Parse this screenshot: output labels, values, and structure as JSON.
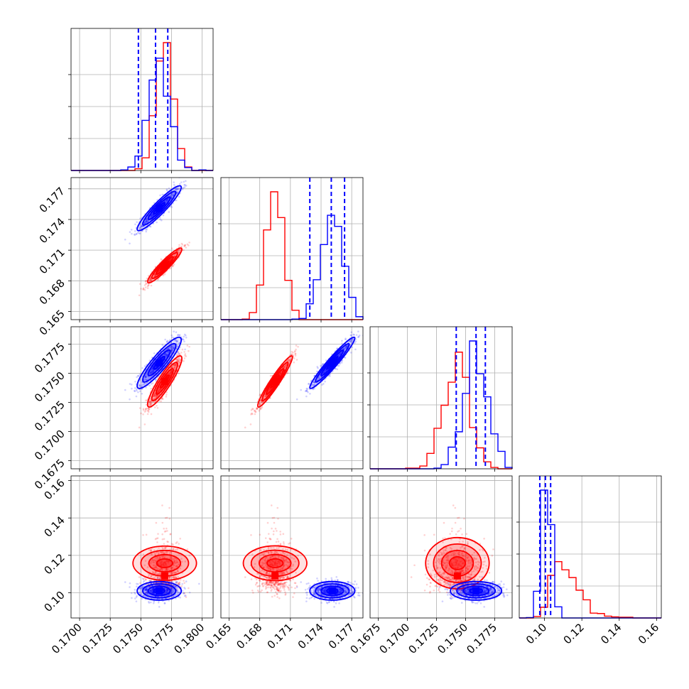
{
  "chart_data": {
    "type": "corner",
    "grid": true,
    "colors": {
      "series_a": "#ff0000",
      "series_b": "#0000ff",
      "grid": "#b0b0b0",
      "axes": "#000000"
    },
    "series": [
      {
        "color": "#ff0000",
        "p1": {
          "center": 0.17695,
          "sd": 0.0007
        },
        "p2": {
          "center": 0.1695,
          "sd": 0.00085
        },
        "p3": {
          "center": 0.1743,
          "sd": 0.0011
        },
        "p4": {
          "center": 0.109,
          "sd": 0.0085
        }
      },
      {
        "color": "#0000ff",
        "p1": {
          "center": 0.1765,
          "sd": 0.0009
        },
        "p2": {
          "center": 0.1751,
          "sd": 0.0011
        },
        "p3": {
          "center": 0.1759,
          "sd": 0.0011
        },
        "p4": {
          "center": 0.101,
          "sd": 0.0025
        }
      }
    ],
    "quantile_lines": [
      [
        0.1748,
        0.1762,
        0.1772
      ],
      [
        0.1729,
        0.175,
        0.1763
      ],
      [
        0.1742,
        0.1759,
        0.1767
      ],
      [
        0.0975,
        0.1005,
        0.1033
      ]
    ],
    "ranges": [
      [
        0.1693,
        0.1809
      ],
      [
        0.1642,
        0.1781
      ],
      [
        0.1668,
        0.179
      ],
      [
        0.0865,
        0.1625
      ]
    ],
    "x_ticks": [
      [
        "0.1700",
        "0.1725",
        "0.1750",
        "0.1775",
        "0.1800"
      ],
      [
        "0.165",
        "0.168",
        "0.171",
        "0.174",
        "0.177"
      ],
      [
        "0.1675",
        "0.1700",
        "0.1725",
        "0.1750",
        "0.1775"
      ],
      [
        "0.10",
        "0.12",
        "0.14",
        "0.16"
      ]
    ],
    "y_ticks": [
      [],
      [
        "0.165",
        "0.168",
        "0.171",
        "0.174",
        "0.177"
      ],
      [
        "0.1675",
        "0.1700",
        "0.1725",
        "0.1750",
        "0.1775"
      ],
      [
        "0.10",
        "0.12",
        "0.14",
        "0.16"
      ]
    ]
  }
}
